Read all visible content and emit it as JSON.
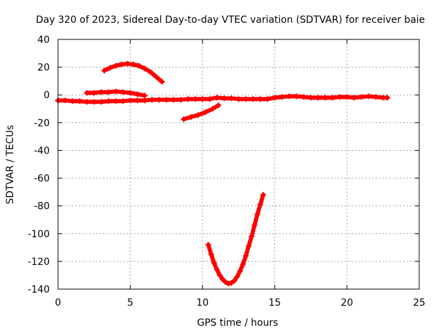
{
  "chart_data": {
    "type": "scatter",
    "title": "Day 320 of 2023, Sidereal Day-to-day VTEC variation (SDTVAR) for receiver baie",
    "xlabel": "GPS time / hours",
    "ylabel": "SDTVAR / TECUs",
    "xlim": [
      0,
      25
    ],
    "ylim": [
      -140,
      40
    ],
    "xticks": [
      0,
      5,
      10,
      15,
      20,
      25
    ],
    "yticks": [
      40,
      20,
      0,
      -20,
      -40,
      -60,
      -80,
      -100,
      -120,
      -140
    ],
    "grid": true,
    "series_color": "#ff0000",
    "series": [
      {
        "name": "main-band",
        "x": [
          0,
          0.5,
          1,
          1.5,
          2,
          2.5,
          3,
          3.5,
          4,
          4.5,
          5,
          5.5,
          6,
          6.5,
          7,
          7.5,
          8,
          8.5,
          9,
          9.5,
          10,
          10.5,
          11,
          11.5,
          12,
          12.5,
          13,
          13.5,
          14,
          14.5,
          15,
          15.5,
          16,
          16.5,
          17,
          17.5,
          18,
          18.5,
          19,
          19.5,
          20,
          20.5,
          21,
          21.5,
          22,
          22.5,
          22.8
        ],
        "y": [
          -4,
          -4,
          -4.5,
          -4.5,
          -5,
          -5,
          -5,
          -4.5,
          -4.5,
          -4.5,
          -4,
          -4,
          -4,
          -3.5,
          -3.5,
          -3.5,
          -3.5,
          -3.5,
          -3,
          -3,
          -3,
          -3,
          -2,
          -2.5,
          -2.5,
          -3,
          -3,
          -3,
          -3,
          -3,
          -2,
          -1.5,
          -1,
          -1,
          -1.5,
          -2,
          -2,
          -2,
          -2,
          -1.5,
          -1.5,
          -2,
          -1.5,
          -1,
          -1.5,
          -2,
          -2
        ]
      },
      {
        "name": "upper-arc",
        "x": [
          3.2,
          3.6,
          4,
          4.4,
          4.8,
          5.2,
          5.6,
          6,
          6.4,
          6.8,
          7.2
        ],
        "y": [
          17.5,
          19.5,
          21,
          22,
          22.5,
          22,
          21,
          19,
          16.5,
          13,
          9.5
        ]
      },
      {
        "name": "short-segment",
        "x": [
          2,
          2.5,
          3,
          3.5,
          4,
          4.5,
          5,
          5.5,
          6
        ],
        "y": [
          1.5,
          1.5,
          2,
          2,
          2.5,
          2,
          1.5,
          0.5,
          -0.5
        ]
      },
      {
        "name": "rising-segment",
        "x": [
          8.7,
          9.2,
          9.7,
          10.2,
          10.7,
          11.1
        ],
        "y": [
          -17.5,
          -16,
          -14.5,
          -12.5,
          -10,
          -7.5
        ]
      },
      {
        "name": "deep-dip",
        "x": [
          10.4,
          10.6,
          10.8,
          11,
          11.2,
          11.4,
          11.6,
          11.8,
          12,
          12.2,
          12.4,
          12.6,
          12.8,
          13,
          13.2,
          13.4,
          13.6,
          13.8,
          14,
          14.2
        ],
        "y": [
          -108,
          -115,
          -121,
          -126,
          -130,
          -133,
          -135,
          -136,
          -135.5,
          -134,
          -131,
          -127,
          -122,
          -116,
          -109,
          -102,
          -94,
          -86,
          -79,
          -72
        ]
      }
    ]
  }
}
